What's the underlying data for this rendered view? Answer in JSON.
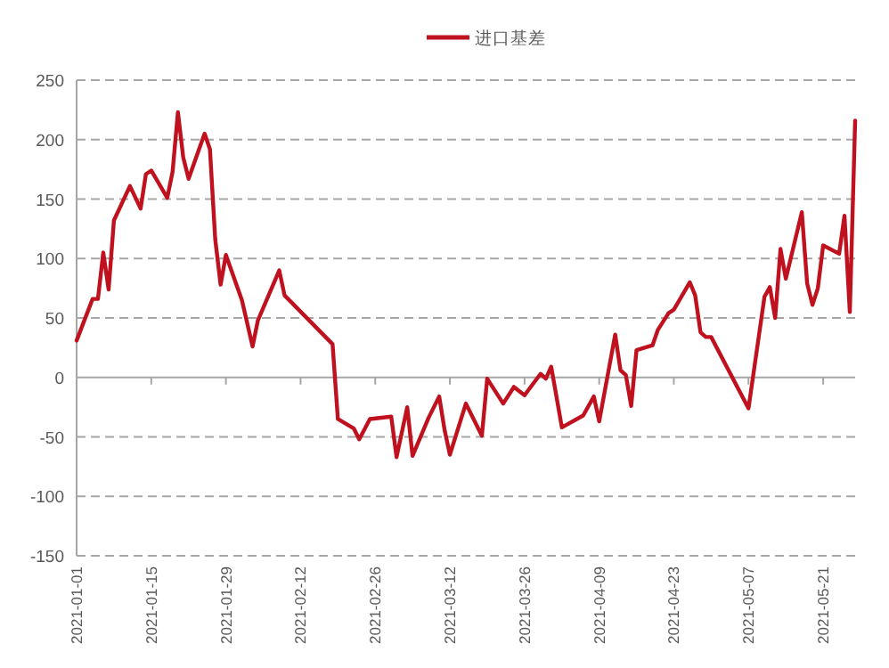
{
  "chart_data": {
    "type": "line",
    "legend": "top",
    "grid": "y",
    "x": [
      "2021-01-01",
      "2021-01-04",
      "2021-01-05",
      "2021-01-06",
      "2021-01-07",
      "2021-01-08",
      "2021-01-11",
      "2021-01-13",
      "2021-01-14",
      "2021-01-15",
      "2021-01-18",
      "2021-01-19",
      "2021-01-20",
      "2021-01-21",
      "2021-01-22",
      "2021-01-25",
      "2021-01-26",
      "2021-01-27",
      "2021-01-28",
      "2021-01-29",
      "2021-02-01",
      "2021-02-03",
      "2021-02-04",
      "2021-02-08",
      "2021-02-09",
      "2021-02-18",
      "2021-02-19",
      "2021-02-22",
      "2021-02-23",
      "2021-02-25",
      "2021-03-01",
      "2021-03-02",
      "2021-03-04",
      "2021-03-05",
      "2021-03-08",
      "2021-03-10",
      "2021-03-11",
      "2021-03-12",
      "2021-03-15",
      "2021-03-18",
      "2021-03-19",
      "2021-03-22",
      "2021-03-24",
      "2021-03-26",
      "2021-03-29",
      "2021-03-30",
      "2021-03-31",
      "2021-04-02",
      "2021-04-06",
      "2021-04-08",
      "2021-04-09",
      "2021-04-12",
      "2021-04-13",
      "2021-04-14",
      "2021-04-15",
      "2021-04-16",
      "2021-04-19",
      "2021-04-20",
      "2021-04-22",
      "2021-04-23",
      "2021-04-26",
      "2021-04-27",
      "2021-04-28",
      "2021-04-29",
      "2021-04-30",
      "2021-05-07",
      "2021-05-10",
      "2021-05-11",
      "2021-05-12",
      "2021-05-13",
      "2021-05-14",
      "2021-05-17",
      "2021-05-18",
      "2021-05-19",
      "2021-05-20",
      "2021-05-21",
      "2021-05-24",
      "2021-05-25",
      "2021-05-26",
      "2021-05-27"
    ],
    "series": [
      {
        "name": "进口基差",
        "color": "#c0111f",
        "values": [
          31,
          66,
          66,
          105,
          74,
          132,
          161,
          142,
          171,
          174,
          151,
          173,
          223,
          185,
          167,
          205,
          192,
          116,
          78,
          103,
          65,
          26,
          48,
          90,
          69,
          28,
          -35,
          -43,
          -52,
          -35,
          -33,
          -67,
          -25,
          -66,
          -34,
          -16,
          -44,
          -65,
          -22,
          -49,
          -1,
          -22,
          -8,
          -15,
          3,
          -1,
          9,
          -42,
          -32,
          -16,
          -37,
          36,
          6,
          2,
          -24,
          23,
          27,
          40,
          54,
          57,
          80,
          69,
          38,
          34,
          34,
          -26,
          68,
          76,
          50,
          108,
          83,
          139,
          79,
          61,
          75,
          111,
          104,
          136,
          55,
          216
        ]
      }
    ],
    "xlim": [
      "2021-01-01",
      "2021-05-27"
    ],
    "xticks": [
      "2021-01-01",
      "2021-01-15",
      "2021-01-29",
      "2021-02-12",
      "2021-02-26",
      "2021-03-12",
      "2021-03-26",
      "2021-04-09",
      "2021-04-23",
      "2021-05-07",
      "2021-05-21"
    ],
    "ylim": [
      -150,
      250
    ],
    "yticks": [
      -150,
      -100,
      -50,
      0,
      50,
      100,
      150,
      200,
      250
    ]
  }
}
